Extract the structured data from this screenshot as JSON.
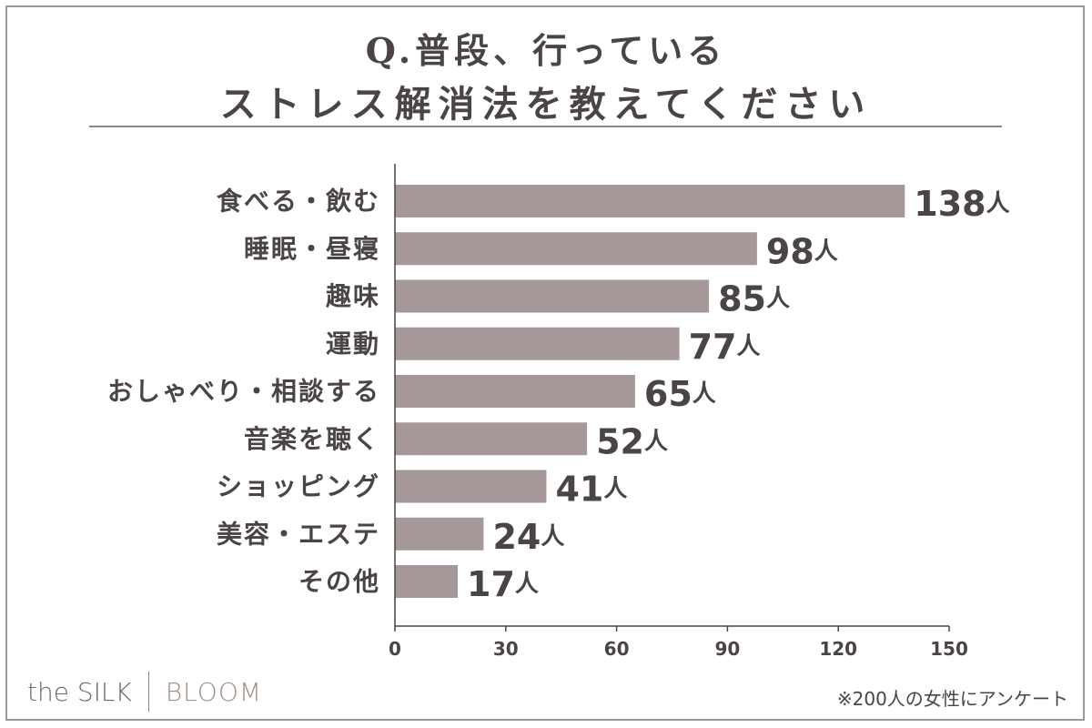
{
  "title": {
    "line1": "Q.普段、行っている",
    "line2": "ストレス解消法を教えてください"
  },
  "chart_data": {
    "type": "bar",
    "orientation": "horizontal",
    "categories": [
      "食べる・飲む",
      "睡眠・昼寝",
      "趣味",
      "運動",
      "おしゃべり・相談する",
      "音楽を聴く",
      "ショッピング",
      "美容・エステ",
      "その他"
    ],
    "values": [
      138,
      98,
      85,
      77,
      65,
      52,
      41,
      24,
      17
    ],
    "value_unit": "人",
    "xlim": [
      0,
      150
    ],
    "xticks": [
      0,
      30,
      60,
      90,
      120,
      150
    ],
    "bar_color": "#a69898",
    "grid": false
  },
  "brand": {
    "left": "the SILK",
    "right": "BLOOM"
  },
  "footnote": "※200人の女性にアンケート"
}
